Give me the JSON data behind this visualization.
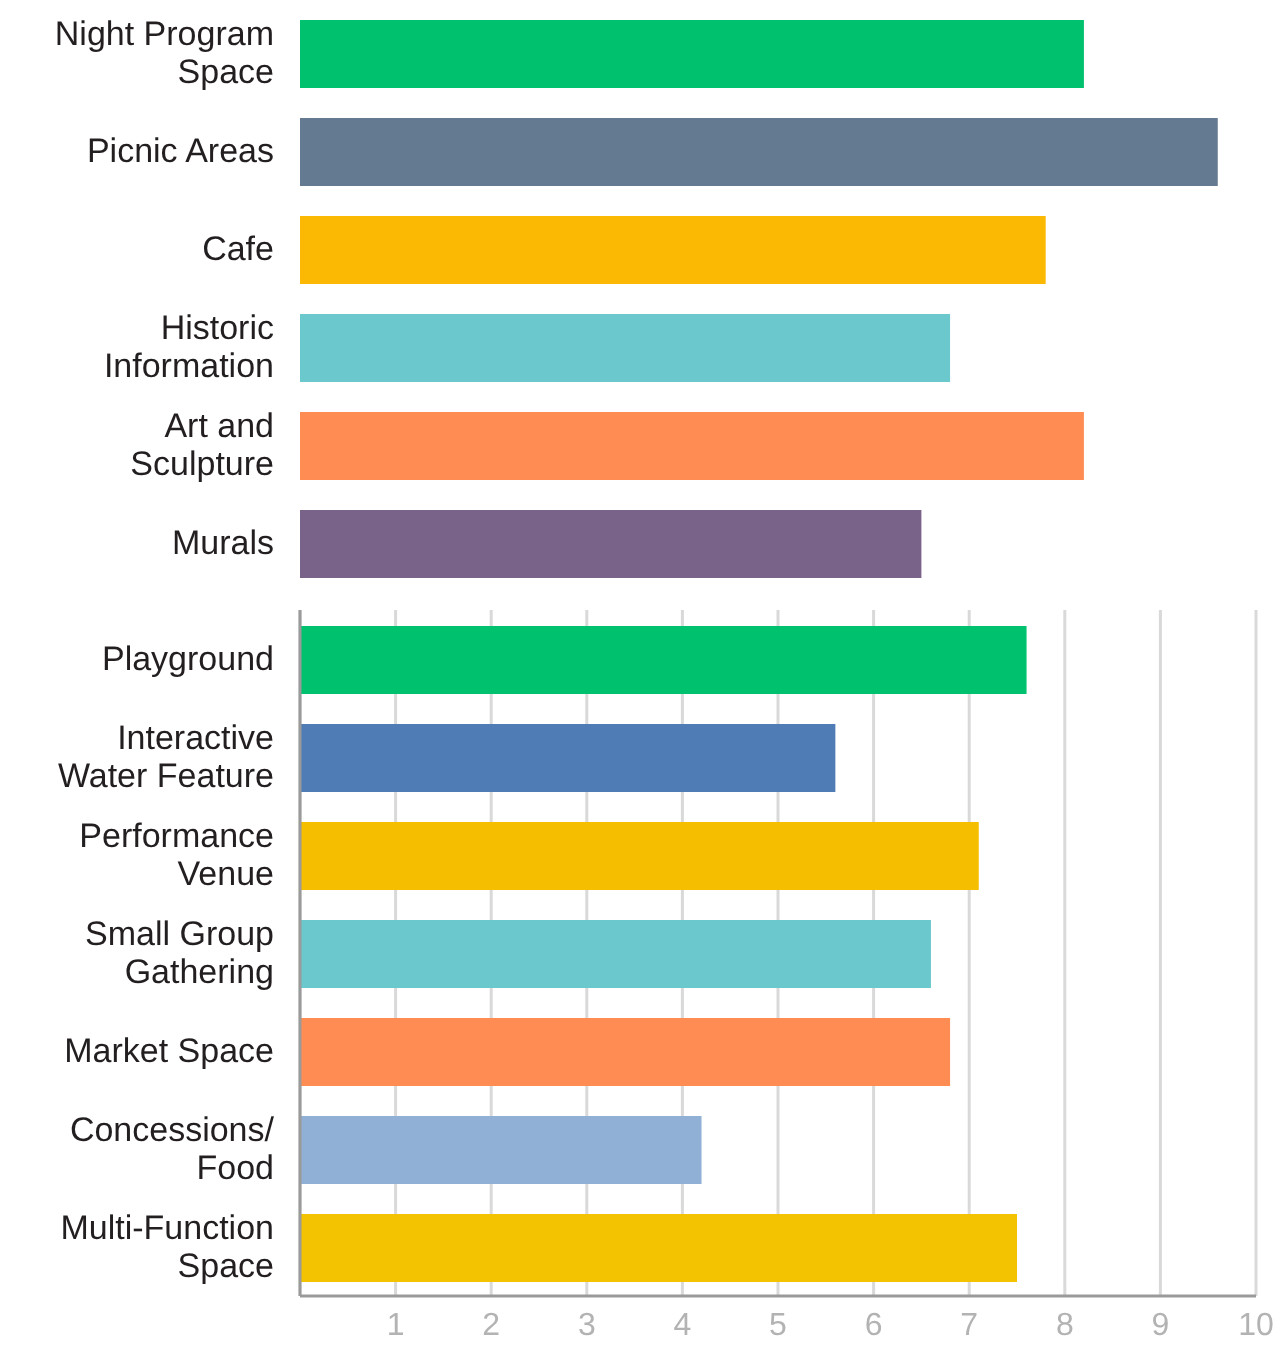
{
  "chart_data": [
    {
      "type": "bar",
      "orientation": "horizontal",
      "categories": [
        "Night Program Space",
        "Picnic Areas",
        "Cafe",
        "Historic Information",
        "Art and Sculpture",
        "Murals"
      ],
      "values": [
        8.2,
        9.6,
        7.8,
        6.8,
        8.2,
        6.5
      ],
      "colors": [
        "#00c16e",
        "#637a91",
        "#fbb904",
        "#6bc8cd",
        "#ff8c52",
        "#7a6389"
      ],
      "xlim": [
        0,
        10
      ],
      "grid": false,
      "tick_labels": "y"
    },
    {
      "type": "bar",
      "orientation": "horizontal",
      "categories": [
        "Playground",
        "Interactive Water Feature",
        "Performance Venue",
        "Small Group Gathering",
        "Market Space",
        "Concessions/Food",
        "Multi-Function Space"
      ],
      "values": [
        7.6,
        5.6,
        7.1,
        6.6,
        6.8,
        4.2,
        7.5
      ],
      "colors": [
        "#00c16e",
        "#4f7cb5",
        "#f5bf00",
        "#6bc8cd",
        "#ff8c52",
        "#90b0d5",
        "#f3c200"
      ],
      "xlim": [
        0,
        10
      ],
      "xticks": [
        1,
        2,
        3,
        4,
        5,
        6,
        7,
        8,
        9,
        10
      ],
      "grid": "x"
    }
  ]
}
